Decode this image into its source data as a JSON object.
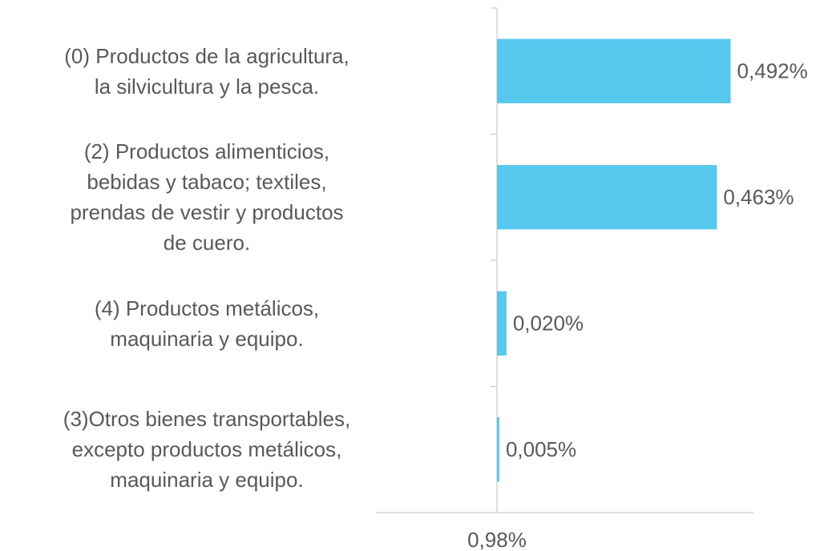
{
  "chart_data": {
    "type": "hbar",
    "categories": [
      "(0) Productos de la agricultura,\nla silvicultura y la pesca.",
      "(2) Productos alimenticios,\nbebidas y tabaco; textiles,\nprendas de vestir y productos\nde cuero.",
      "(4) Productos metálicos,\nmaquinaria y equipo.",
      "(3)Otros bienes transportables,\nexcepto productos metálicos,\nmaquinaria y equipo."
    ],
    "values": [
      0.492,
      0.463,
      0.02,
      0.005
    ],
    "value_labels": [
      "0,492%",
      "0,463%",
      "0,020%",
      "0,005%"
    ],
    "color": "#56c8ee",
    "xlim": [
      0,
      0.54
    ],
    "x_axis_label": "0,98%"
  }
}
